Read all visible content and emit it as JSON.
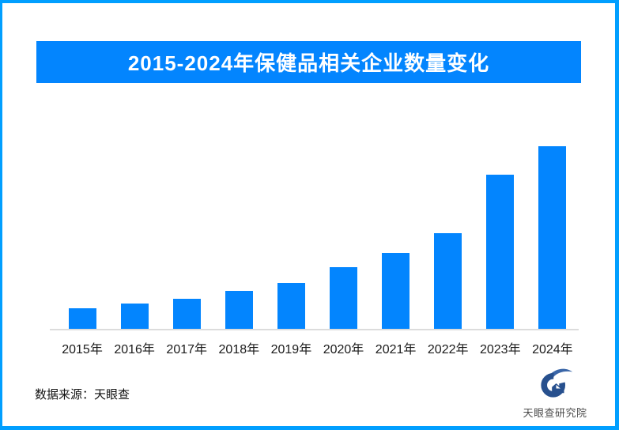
{
  "chart_data": {
    "type": "bar",
    "title": "2015-2024年保健品相关企业数量变化",
    "categories": [
      "2015年",
      "2016年",
      "2017年",
      "2018年",
      "2019年",
      "2020年",
      "2021年",
      "2022年",
      "2023年",
      "2024年"
    ],
    "values": [
      26,
      32,
      38,
      48,
      58,
      78,
      96,
      121,
      195,
      231
    ],
    "note": "no numeric y-axis, gridlines or data labels shown; values are relative bar heights read from pixels",
    "xlabel": "",
    "ylabel": "",
    "ylim": [
      0,
      236
    ],
    "grid": false,
    "legend": "none",
    "bar_color": "#0385fe",
    "axis_line_color": "#dcdcdc"
  },
  "footer": {
    "source_label": "数据来源：天眼查",
    "logo_text": "天眼查研究院"
  },
  "colors": {
    "frame_border": "#019fff",
    "banner_background": "#0385fe",
    "banner_text": "#ffffff",
    "bar": "#0385fe",
    "axis_line": "#dcdcdc",
    "logo_blue": "#27508e",
    "logo_blue_light": "#3a66a8"
  }
}
